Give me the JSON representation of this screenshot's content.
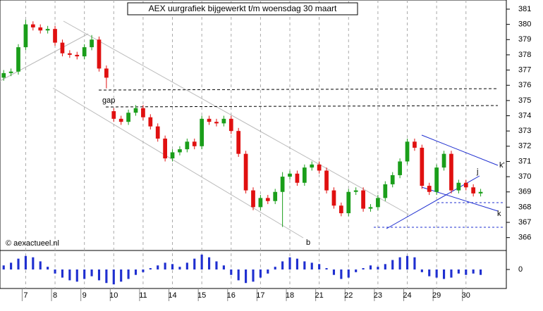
{
  "chart_data": [
    {
      "type": "candlestick",
      "title": "AEX uurgrafiek bijgewerkt t/m woensdag 30 maart",
      "open": [
        376.5,
        376.8,
        376.9,
        378.5,
        380.0,
        379.8,
        379.6,
        379.7,
        378.8,
        378.1,
        378.0,
        377.9,
        378.5,
        379.0,
        377.1,
        374.3,
        373.8,
        373.6,
        374.2,
        374.5,
        373.9,
        373.3,
        372.5,
        371.2,
        371.6,
        371.8,
        372.3,
        372.0,
        373.8,
        373.6,
        373.5,
        373.8,
        373.0,
        371.5,
        369.1,
        368.0,
        368.6,
        368.4,
        369.0,
        370.0,
        370.2,
        369.6,
        370.6,
        370.8,
        370.4,
        369.1,
        368.1,
        367.6,
        369.0,
        369.1,
        367.9,
        368.0,
        368.6,
        369.5,
        370.1,
        371.0,
        372.3,
        371.9,
        369.4,
        369.0,
        370.6,
        371.5,
        369.1,
        369.6,
        369.3,
        368.9
      ],
      "high": [
        377.0,
        377.1,
        378.7,
        380.3,
        380.2,
        380.0,
        379.9,
        379.9,
        379.0,
        378.3,
        378.2,
        378.7,
        379.3,
        379.2,
        377.3,
        374.5,
        374.0,
        374.4,
        374.7,
        374.7,
        374.1,
        373.5,
        372.7,
        371.8,
        372.0,
        372.5,
        372.5,
        374.0,
        374.0,
        373.8,
        374.0,
        374.0,
        373.2,
        371.7,
        369.3,
        368.8,
        368.8,
        369.2,
        370.3,
        370.4,
        370.4,
        370.8,
        371.0,
        371.0,
        370.6,
        369.3,
        368.3,
        369.2,
        369.3,
        369.3,
        368.2,
        368.8,
        369.7,
        370.3,
        371.2,
        372.5,
        372.5,
        372.1,
        369.6,
        370.8,
        371.7,
        371.7,
        369.8,
        369.8,
        369.5,
        369.2
      ],
      "low": [
        376.3,
        376.6,
        376.7,
        378.3,
        379.6,
        379.4,
        379.4,
        378.6,
        377.9,
        377.8,
        377.7,
        377.7,
        378.3,
        376.9,
        375.8,
        373.6,
        373.4,
        373.4,
        374.0,
        373.7,
        373.1,
        372.3,
        371.0,
        371.0,
        371.4,
        371.6,
        371.8,
        371.8,
        373.4,
        373.3,
        373.3,
        372.8,
        371.3,
        368.9,
        367.8,
        367.8,
        368.2,
        368.2,
        366.7,
        369.8,
        369.4,
        369.4,
        370.4,
        370.2,
        368.9,
        367.9,
        367.4,
        367.4,
        368.8,
        367.7,
        367.7,
        367.8,
        368.4,
        369.3,
        369.9,
        370.8,
        371.7,
        369.2,
        368.8,
        368.8,
        370.4,
        368.9,
        368.9,
        369.1,
        368.7,
        368.7
      ],
      "close": [
        376.8,
        376.9,
        378.5,
        380.0,
        379.8,
        379.6,
        379.7,
        378.8,
        378.1,
        378.0,
        377.9,
        378.5,
        379.0,
        377.1,
        376.5,
        373.8,
        373.6,
        374.2,
        374.5,
        373.9,
        373.3,
        372.5,
        371.2,
        371.6,
        371.8,
        372.3,
        372.0,
        373.8,
        373.6,
        373.5,
        373.8,
        373.0,
        371.5,
        369.1,
        368.0,
        368.6,
        368.4,
        369.0,
        370.0,
        370.2,
        369.6,
        370.6,
        370.8,
        370.4,
        369.1,
        368.1,
        367.6,
        369.0,
        369.1,
        367.9,
        368.0,
        368.6,
        369.5,
        370.1,
        371.0,
        372.3,
        371.9,
        369.4,
        369.0,
        370.6,
        371.5,
        369.1,
        369.6,
        369.3,
        368.9,
        369.0
      ],
      "up_color": "#1a9e1a",
      "down_color": "#e01010",
      "xlim": [
        -0.5,
        68.5
      ],
      "xticks": [
        {
          "value": 3,
          "label": "7"
        },
        {
          "value": 7,
          "label": "8"
        },
        {
          "value": 11,
          "label": "9"
        },
        {
          "value": 15,
          "label": "10"
        },
        {
          "value": 19,
          "label": "11"
        },
        {
          "value": 23,
          "label": "14"
        },
        {
          "value": 27,
          "label": "15"
        },
        {
          "value": 31,
          "label": "16"
        },
        {
          "value": 35,
          "label": "17"
        },
        {
          "value": 39,
          "label": "18"
        },
        {
          "value": 43,
          "label": "21"
        },
        {
          "value": 47,
          "label": "22"
        },
        {
          "value": 51,
          "label": "23"
        },
        {
          "value": 55,
          "label": "24"
        },
        {
          "value": 59,
          "label": "29"
        },
        {
          "value": 63,
          "label": "30"
        }
      ],
      "ylim": [
        365.2,
        381.6
      ],
      "yticks": [
        366,
        367,
        368,
        369,
        370,
        371,
        372,
        373,
        374,
        375,
        376,
        377,
        378,
        379,
        380,
        381
      ],
      "grid": true,
      "annotations": [
        "gap",
        "b",
        "k'",
        "k",
        "j",
        "© aexactueel.nl"
      ]
    },
    {
      "type": "bar",
      "values": [
        0.3,
        0.5,
        0.8,
        1.0,
        0.9,
        0.6,
        0.2,
        -0.3,
        -0.6,
        -0.8,
        -0.9,
        -0.7,
        -0.5,
        -0.8,
        -1.0,
        -1.1,
        -0.9,
        -0.7,
        -0.4,
        -0.2,
        0.1,
        0.3,
        0.5,
        0.4,
        0.2,
        0.5,
        0.8,
        1.1,
        0.9,
        0.6,
        0.3,
        -0.4,
        -0.8,
        -1.0,
        -0.9,
        -0.6,
        -0.3,
        0.2,
        0.6,
        0.9,
        0.8,
        0.6,
        0.5,
        0.4,
        0.1,
        -0.4,
        -0.7,
        -0.6,
        -0.2,
        0.1,
        0.3,
        0.2,
        0.4,
        0.7,
        0.9,
        1.0,
        0.9,
        -0.2,
        -0.5,
        -0.6,
        -0.7,
        -0.6,
        -0.3,
        -0.4,
        -0.3,
        -0.4
      ],
      "color": "#1f2fd0",
      "ylim": [
        -1.3,
        1.3
      ],
      "yticks": [
        0
      ]
    }
  ]
}
